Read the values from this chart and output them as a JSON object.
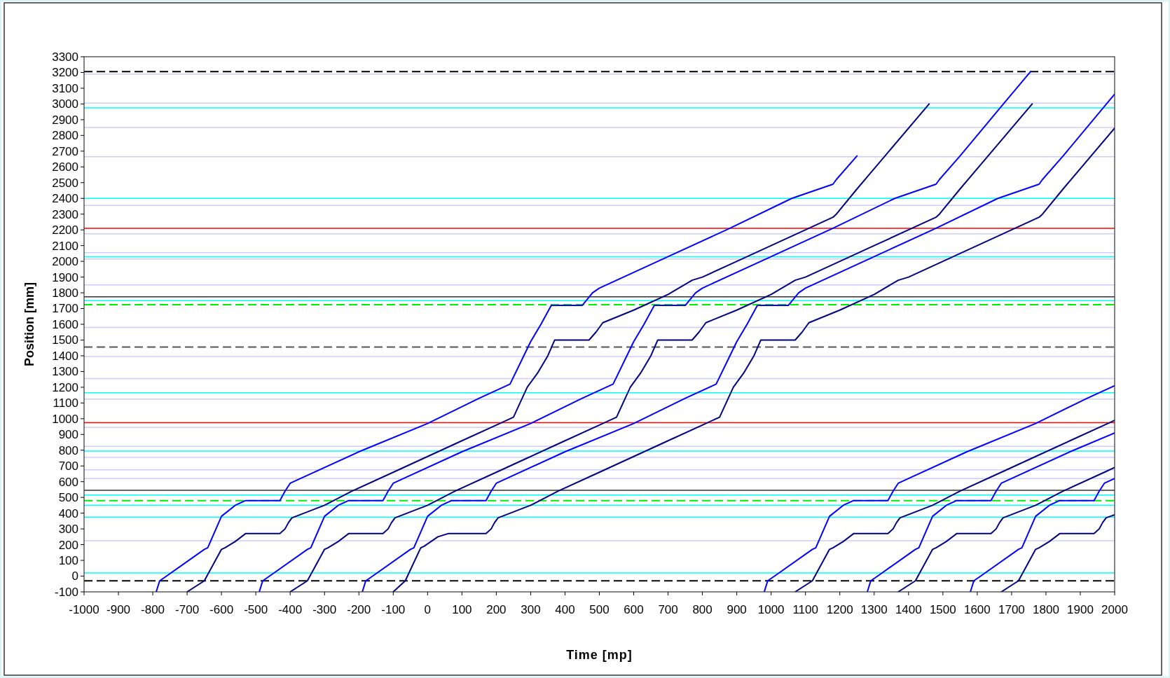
{
  "chart_data": {
    "type": "line",
    "xlabel": "Time [mp]",
    "ylabel": "Position [mm]",
    "xlim": [
      -1000,
      2000
    ],
    "xticks": [
      -1000,
      -900,
      -800,
      -700,
      -600,
      -500,
      -400,
      -300,
      -200,
      -100,
      0,
      100,
      200,
      300,
      400,
      500,
      600,
      700,
      800,
      900,
      1000,
      1100,
      1200,
      1300,
      1400,
      1500,
      1600,
      1700,
      1800,
      1900,
      2000
    ],
    "ylim": [
      -100,
      3300
    ],
    "yticks": [
      -100,
      0,
      100,
      200,
      300,
      400,
      500,
      600,
      700,
      800,
      900,
      1000,
      1100,
      1200,
      1300,
      1400,
      1500,
      1600,
      1700,
      1800,
      1900,
      2000,
      2100,
      2200,
      2300,
      2400,
      2500,
      2600,
      2700,
      2800,
      2900,
      3000,
      3100,
      3200,
      3300
    ],
    "ref_lines": [
      {
        "axis": "y",
        "value": 3190,
        "color": "#ccccff"
      },
      {
        "axis": "y",
        "value": 3005,
        "color": "#ccccff"
      },
      {
        "axis": "y",
        "value": 2850,
        "color": "#ccccff"
      },
      {
        "axis": "y",
        "value": 2665,
        "color": "#ccccff"
      },
      {
        "axis": "y",
        "value": 2355,
        "color": "#ccccff"
      },
      {
        "axis": "y",
        "value": 2175,
        "color": "#ccccff"
      },
      {
        "axis": "y",
        "value": 2055,
        "color": "#ccccff"
      },
      {
        "axis": "y",
        "value": 2015,
        "color": "#ccccff"
      },
      {
        "axis": "y",
        "value": 1850,
        "color": "#ccccff"
      },
      {
        "axis": "y",
        "value": 1580,
        "color": "#ccccff"
      },
      {
        "axis": "y",
        "value": 1395,
        "color": "#ccccff"
      },
      {
        "axis": "y",
        "value": 1255,
        "color": "#ccccff"
      },
      {
        "axis": "y",
        "value": 1125,
        "color": "#ccccff"
      },
      {
        "axis": "y",
        "value": 945,
        "color": "#ccccff"
      },
      {
        "axis": "y",
        "value": 825,
        "color": "#ccccff"
      },
      {
        "axis": "y",
        "value": 755,
        "color": "#ccccff"
      },
      {
        "axis": "y",
        "value": 675,
        "color": "#ccccff"
      },
      {
        "axis": "y",
        "value": 620,
        "color": "#ccccff"
      },
      {
        "axis": "y",
        "value": 225,
        "color": "#ccccff"
      },
      {
        "axis": "y",
        "value": 3205,
        "color": "#000000",
        "line_style": "dashed"
      },
      {
        "axis": "y",
        "value": 2975,
        "color": "#00ffff"
      },
      {
        "axis": "y",
        "value": 2400,
        "color": "#00ffff"
      },
      {
        "axis": "y",
        "value": 2210,
        "color": "#ff0000"
      },
      {
        "axis": "y",
        "value": 2030,
        "color": "#00ffff"
      },
      {
        "axis": "y",
        "value": 1775,
        "color": "#333333"
      },
      {
        "axis": "y",
        "value": 1750,
        "color": "#00ffff"
      },
      {
        "axis": "y",
        "value": 1725,
        "color": "#00ee00",
        "line_style": "dashed"
      },
      {
        "axis": "y",
        "value": 1455,
        "color": "#555555",
        "line_style": "dashed"
      },
      {
        "axis": "y",
        "value": 1165,
        "color": "#00ffff"
      },
      {
        "axis": "y",
        "value": 975,
        "color": "#ff0000"
      },
      {
        "axis": "y",
        "value": 795,
        "color": "#00ffff"
      },
      {
        "axis": "y",
        "value": 545,
        "color": "#333333"
      },
      {
        "axis": "y",
        "value": 515,
        "color": "#00ffff"
      },
      {
        "axis": "y",
        "value": 480,
        "color": "#00ee00",
        "line_style": "dashed"
      },
      {
        "axis": "y",
        "value": 450,
        "color": "#00ffff"
      },
      {
        "axis": "y",
        "value": 375,
        "color": "#00ffff"
      },
      {
        "axis": "y",
        "value": 20,
        "color": "#00ffff"
      },
      {
        "axis": "y",
        "value": -30,
        "color": "#000000",
        "line_style": "dashed"
      }
    ],
    "series": [
      {
        "color": "#0000ff",
        "x": [
          -790,
          -780,
          -760,
          -650,
          -640,
          -600,
          -560,
          -530,
          -430,
          -415,
          -400,
          -370,
          -200,
          0,
          150,
          240,
          280,
          300,
          330,
          360,
          450,
          480,
          500,
          700,
          880,
          1060,
          1180,
          1190,
          1250
        ],
        "values": [
          -100,
          -30,
          0,
          170,
          180,
          380,
          450,
          480,
          480,
          540,
          590,
          620,
          790,
          970,
          1130,
          1220,
          1400,
          1490,
          1600,
          1720,
          1720,
          1800,
          1830,
          2030,
          2210,
          2400,
          2490,
          2520,
          2670
        ]
      },
      {
        "color": "#000080",
        "x": [
          -700,
          -650,
          -600,
          -590,
          -560,
          -530,
          -430,
          -415,
          -405,
          -395,
          -300,
          -220,
          -100,
          0,
          100,
          200,
          250,
          290,
          320,
          350,
          370,
          470,
          490,
          510,
          600,
          700,
          770,
          800,
          900,
          1000,
          1180,
          1190,
          1250,
          1460
        ],
        "values": [
          -100,
          -30,
          170,
          180,
          220,
          270,
          270,
          300,
          340,
          370,
          450,
          540,
          660,
          760,
          860,
          960,
          1010,
          1200,
          1290,
          1400,
          1500,
          1500,
          1550,
          1610,
          1690,
          1790,
          1880,
          1900,
          2000,
          2100,
          2280,
          2300,
          2460,
          3000
        ]
      },
      {
        "color": "#0000ff",
        "x": [
          -490,
          -480,
          -460,
          -350,
          -340,
          -300,
          -260,
          -230,
          -130,
          -115,
          -100,
          -70,
          100,
          300,
          450,
          540,
          580,
          600,
          630,
          660,
          750,
          780,
          800,
          1000,
          1180,
          1360,
          1480,
          1490,
          1550,
          1680,
          1755
        ],
        "values": [
          -100,
          -30,
          0,
          170,
          180,
          380,
          450,
          480,
          480,
          540,
          590,
          620,
          790,
          970,
          1130,
          1220,
          1400,
          1490,
          1600,
          1720,
          1720,
          1800,
          1830,
          2030,
          2210,
          2400,
          2490,
          2520,
          2670,
          3010,
          3205
        ]
      },
      {
        "color": "#000080",
        "x": [
          -400,
          -350,
          -300,
          -290,
          -260,
          -230,
          -130,
          -115,
          -105,
          -95,
          0,
          80,
          200,
          300,
          400,
          500,
          550,
          590,
          620,
          650,
          670,
          770,
          790,
          810,
          900,
          1000,
          1070,
          1100,
          1200,
          1300,
          1480,
          1490,
          1550,
          1760
        ],
        "values": [
          -100,
          -30,
          170,
          180,
          220,
          270,
          270,
          300,
          340,
          370,
          450,
          540,
          660,
          760,
          860,
          960,
          1010,
          1200,
          1290,
          1400,
          1500,
          1500,
          1550,
          1610,
          1690,
          1790,
          1880,
          1900,
          2000,
          2100,
          2280,
          2300,
          2460,
          3000
        ]
      },
      {
        "color": "#0000ff",
        "x": [
          -190,
          -180,
          -160,
          -50,
          -40,
          0,
          40,
          70,
          170,
          185,
          200,
          230,
          400,
          600,
          750,
          840,
          880,
          900,
          930,
          960,
          1050,
          1080,
          1100,
          1300,
          1480,
          1660,
          1780,
          1790,
          1850,
          1980,
          2000
        ],
        "values": [
          -100,
          -30,
          0,
          170,
          180,
          380,
          450,
          480,
          480,
          540,
          590,
          620,
          790,
          970,
          1130,
          1220,
          1400,
          1490,
          1600,
          1720,
          1720,
          1800,
          1830,
          2030,
          2210,
          2400,
          2490,
          2520,
          2670,
          3010,
          3062
        ]
      },
      {
        "color": "#000080",
        "x": [
          -100,
          -65,
          -20,
          -10,
          30,
          60,
          170,
          185,
          195,
          205,
          300,
          380,
          500,
          600,
          700,
          800,
          850,
          890,
          920,
          950,
          970,
          1070,
          1090,
          1110,
          1200,
          1300,
          1370,
          1400,
          1500,
          1600,
          1780,
          1790,
          1850,
          2000
        ],
        "values": [
          -100,
          -30,
          180,
          190,
          250,
          270,
          270,
          300,
          340,
          370,
          450,
          540,
          660,
          760,
          860,
          960,
          1010,
          1200,
          1290,
          1400,
          1500,
          1500,
          1550,
          1610,
          1690,
          1790,
          1880,
          1900,
          2000,
          2100,
          2280,
          2300,
          2460,
          2846
        ]
      },
      {
        "color": "#0000ff",
        "x": [
          980,
          990,
          1010,
          1120,
          1130,
          1170,
          1210,
          1240,
          1340,
          1355,
          1370,
          1400,
          1570,
          1770,
          1920,
          2000
        ],
        "values": [
          -100,
          -30,
          0,
          170,
          180,
          380,
          450,
          480,
          480,
          540,
          590,
          620,
          790,
          970,
          1130,
          1210
        ]
      },
      {
        "color": "#000080",
        "x": [
          1070,
          1120,
          1170,
          1180,
          1210,
          1240,
          1340,
          1355,
          1365,
          1375,
          1470,
          1550,
          1670,
          1770,
          1870,
          1970,
          2000
        ],
        "values": [
          -100,
          -30,
          170,
          180,
          220,
          270,
          270,
          300,
          340,
          370,
          450,
          540,
          660,
          760,
          860,
          960,
          990
        ]
      },
      {
        "color": "#0000ff",
        "x": [
          1280,
          1290,
          1310,
          1420,
          1430,
          1470,
          1510,
          1540,
          1640,
          1655,
          1670,
          1700,
          1870,
          2000
        ],
        "values": [
          -100,
          -30,
          0,
          170,
          180,
          380,
          450,
          480,
          480,
          540,
          590,
          620,
          790,
          910
        ]
      },
      {
        "color": "#000080",
        "x": [
          1370,
          1420,
          1470,
          1480,
          1510,
          1540,
          1640,
          1655,
          1665,
          1675,
          1770,
          1850,
          1970,
          2000
        ],
        "values": [
          -100,
          -30,
          170,
          180,
          220,
          270,
          270,
          300,
          340,
          370,
          450,
          540,
          660,
          690
        ]
      },
      {
        "color": "#0000ff",
        "x": [
          1580,
          1590,
          1610,
          1720,
          1730,
          1770,
          1810,
          1840,
          1940,
          1955,
          1970,
          2000
        ],
        "values": [
          -100,
          -30,
          0,
          170,
          180,
          380,
          450,
          480,
          480,
          540,
          590,
          620
        ]
      },
      {
        "color": "#000080",
        "x": [
          1670,
          1720,
          1770,
          1780,
          1810,
          1840,
          1940,
          1955,
          1965,
          1975,
          2000
        ],
        "values": [
          -100,
          -30,
          170,
          180,
          220,
          270,
          270,
          300,
          340,
          370,
          390
        ]
      }
    ]
  }
}
